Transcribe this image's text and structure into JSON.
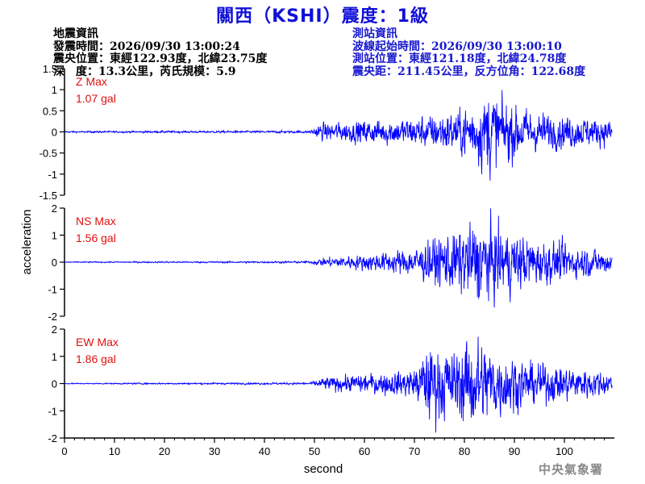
{
  "header": {
    "title": "關西（KSHI）震度：1級"
  },
  "quake_info": {
    "heading": "地震資訊",
    "time": "發震時間：2026/09/30 13:00:24",
    "location": "震央位置：東經122.93度，北緯23.75度",
    "depth_magnitude": "深　度：13.3公里，芮氏規模：5.9"
  },
  "station_info": {
    "heading": "測站資訊",
    "onset_time": "波線起始時間：2026/09/30 13:00:10",
    "location": "測站位置：東經121.18度，北緯24.78度",
    "distance_azimuth": "震央距：211.45公里，反方位角：122.68度"
  },
  "agency": "中央氣象署",
  "colors": {
    "trace": "#0000ff",
    "max_label": "#e01010",
    "title": "#1010d8",
    "station_text": "#1818d0"
  },
  "chart_data": {
    "type": "line",
    "xlabel": "second",
    "ylabel": "acceleration",
    "xlim": [
      0,
      110
    ],
    "x_ticks": [
      0,
      10,
      20,
      30,
      40,
      50,
      60,
      70,
      80,
      90,
      100
    ],
    "grid": false,
    "panels": [
      {
        "name": "Z",
        "max_label": "Z Max",
        "max_value": "1.07 gal",
        "ylim": [
          -1.5,
          1.5
        ],
        "y_ticks": [
          -1.5,
          -1,
          -0.5,
          0,
          0.5,
          1,
          1.5
        ],
        "y_tick_labels": [
          "-1.5",
          "-1",
          "-0.5",
          "0",
          "0.5",
          "1",
          "1.5"
        ],
        "envelope": [
          [
            0,
            0.02
          ],
          [
            49,
            0.03
          ],
          [
            51,
            0.2
          ],
          [
            60,
            0.28
          ],
          [
            70,
            0.35
          ],
          [
            78,
            0.5
          ],
          [
            82,
            0.72
          ],
          [
            85,
            1.07
          ],
          [
            88,
            0.75
          ],
          [
            95,
            0.45
          ],
          [
            105,
            0.35
          ],
          [
            109.5,
            0.3
          ]
        ]
      },
      {
        "name": "NS",
        "max_label": "NS Max",
        "max_value": "1.56 gal",
        "ylim": [
          -2,
          2
        ],
        "y_ticks": [
          -2,
          -1,
          0,
          1,
          2
        ],
        "y_tick_labels": [
          "-2",
          "-1",
          "0",
          "1",
          "2"
        ],
        "envelope": [
          [
            0,
            0.02
          ],
          [
            49,
            0.04
          ],
          [
            52,
            0.18
          ],
          [
            60,
            0.3
          ],
          [
            70,
            0.55
          ],
          [
            75,
            1.0
          ],
          [
            80,
            1.3
          ],
          [
            83,
            1.56
          ],
          [
            87,
            1.3
          ],
          [
            95,
            0.85
          ],
          [
            105,
            0.55
          ],
          [
            109.5,
            0.45
          ]
        ]
      },
      {
        "name": "EW",
        "max_label": "EW Max",
        "max_value": "1.86 gal",
        "ylim": [
          -2,
          2
        ],
        "y_ticks": [
          -2,
          -1,
          0,
          1,
          2
        ],
        "y_tick_labels": [
          "-2",
          "-1",
          "0",
          "1",
          "2"
        ],
        "envelope": [
          [
            0,
            0.02
          ],
          [
            49,
            0.04
          ],
          [
            52,
            0.25
          ],
          [
            60,
            0.35
          ],
          [
            70,
            0.55
          ],
          [
            73,
            1.5
          ],
          [
            78,
            1.2
          ],
          [
            82,
            1.86
          ],
          [
            87,
            1.2
          ],
          [
            95,
            0.75
          ],
          [
            105,
            0.55
          ],
          [
            109.5,
            0.45
          ]
        ]
      }
    ]
  }
}
